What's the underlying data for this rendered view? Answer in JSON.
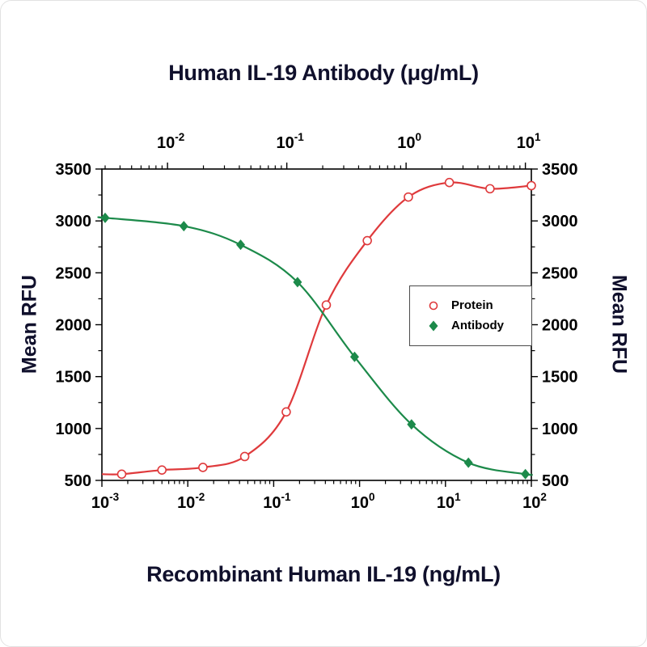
{
  "figure": {
    "top_axis_title": "Human IL-19 Antibody (μg/mL)",
    "bottom_axis_title": "Recombinant Human IL-19 (ng/mL)",
    "left_axis_title": "Mean RFU",
    "right_axis_title": "Mean RFU"
  },
  "chart_data": {
    "type": "line",
    "description": "Dose-response curves: Protein (rising sigmoid, red open circles, bottom log axis) and Antibody neutralization (falling sigmoid, green filled diamonds, top log axis)",
    "legend": {
      "position": "center-right",
      "border": true
    },
    "axes": {
      "bottom": {
        "scale": "log",
        "label": "Recombinant Human IL-19 (ng/mL)",
        "min_exponent": -3,
        "max_exponent": 2,
        "major_tick_exponents": [
          -3,
          -2,
          -1,
          0,
          1,
          2
        ]
      },
      "top": {
        "scale": "log",
        "label": "Human IL-19 Antibody (μg/mL)",
        "min_exponent": -2.55,
        "max_exponent": 1.05,
        "major_tick_exponents": [
          -2,
          -1,
          0,
          1
        ]
      },
      "y": {
        "label": "Mean RFU",
        "min": 500,
        "max": 3500,
        "major_tick_step": 500,
        "minor_tick_step": 250,
        "tick_labels": [
          500,
          1000,
          1500,
          2000,
          2500,
          3000,
          3500
        ]
      }
    },
    "series": [
      {
        "name": "Protein",
        "x_axis": "bottom",
        "marker": "open-circle",
        "color": "#df3a3c",
        "x": [
          0.0017,
          0.005,
          0.015,
          0.046,
          0.14,
          0.41,
          1.23,
          3.7,
          11.1,
          33,
          100
        ],
        "y": [
          560,
          600,
          625,
          730,
          1160,
          2190,
          2810,
          3230,
          3370,
          3310,
          3340
        ]
      },
      {
        "name": "Antibody",
        "x_axis": "top",
        "marker": "filled-diamond",
        "color": "#1c8a4a",
        "x": [
          0.003,
          0.0137,
          0.041,
          0.123,
          0.37,
          1.11,
          3.33,
          10
        ],
        "y": [
          3030,
          2950,
          2770,
          2410,
          1690,
          1040,
          670,
          560
        ]
      }
    ]
  }
}
